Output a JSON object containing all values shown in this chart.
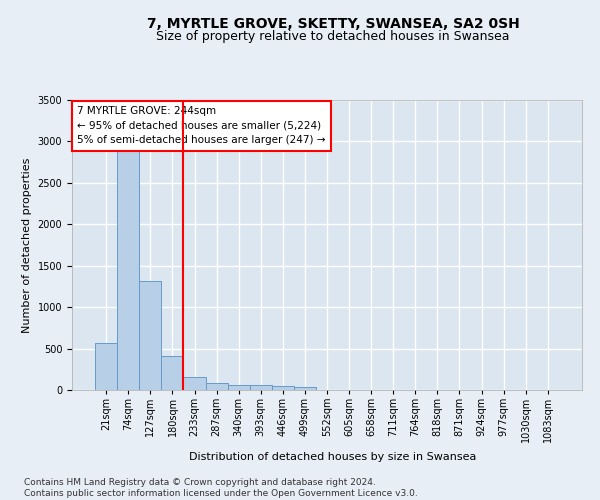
{
  "title": "7, MYRTLE GROVE, SKETTY, SWANSEA, SA2 0SH",
  "subtitle": "Size of property relative to detached houses in Swansea",
  "xlabel": "Distribution of detached houses by size in Swansea",
  "ylabel": "Number of detached properties",
  "categories": [
    "21sqm",
    "74sqm",
    "127sqm",
    "180sqm",
    "233sqm",
    "287sqm",
    "340sqm",
    "393sqm",
    "446sqm",
    "499sqm",
    "552sqm",
    "605sqm",
    "658sqm",
    "711sqm",
    "764sqm",
    "818sqm",
    "871sqm",
    "924sqm",
    "977sqm",
    "1030sqm",
    "1083sqm"
  ],
  "values": [
    570,
    2920,
    1315,
    410,
    160,
    90,
    65,
    55,
    45,
    35,
    0,
    0,
    0,
    0,
    0,
    0,
    0,
    0,
    0,
    0,
    0
  ],
  "bar_color": "#b8cfe8",
  "bar_edge_color": "#6699cc",
  "red_line_x": 3.5,
  "annotation_line1": "7 MYRTLE GROVE: 244sqm",
  "annotation_line2": "← 95% of detached houses are smaller (5,224)",
  "annotation_line3": "5% of semi-detached houses are larger (247) →",
  "ylim": [
    0,
    3500
  ],
  "yticks": [
    0,
    500,
    1000,
    1500,
    2000,
    2500,
    3000,
    3500
  ],
  "footer": "Contains HM Land Registry data © Crown copyright and database right 2024.\nContains public sector information licensed under the Open Government Licence v3.0.",
  "background_color": "#e8eef5",
  "plot_bg_color": "#dce6f0",
  "grid_color": "#ffffff",
  "title_fontsize": 10,
  "subtitle_fontsize": 9,
  "label_fontsize": 8,
  "tick_fontsize": 7,
  "annot_fontsize": 7.5,
  "footer_fontsize": 6.5
}
